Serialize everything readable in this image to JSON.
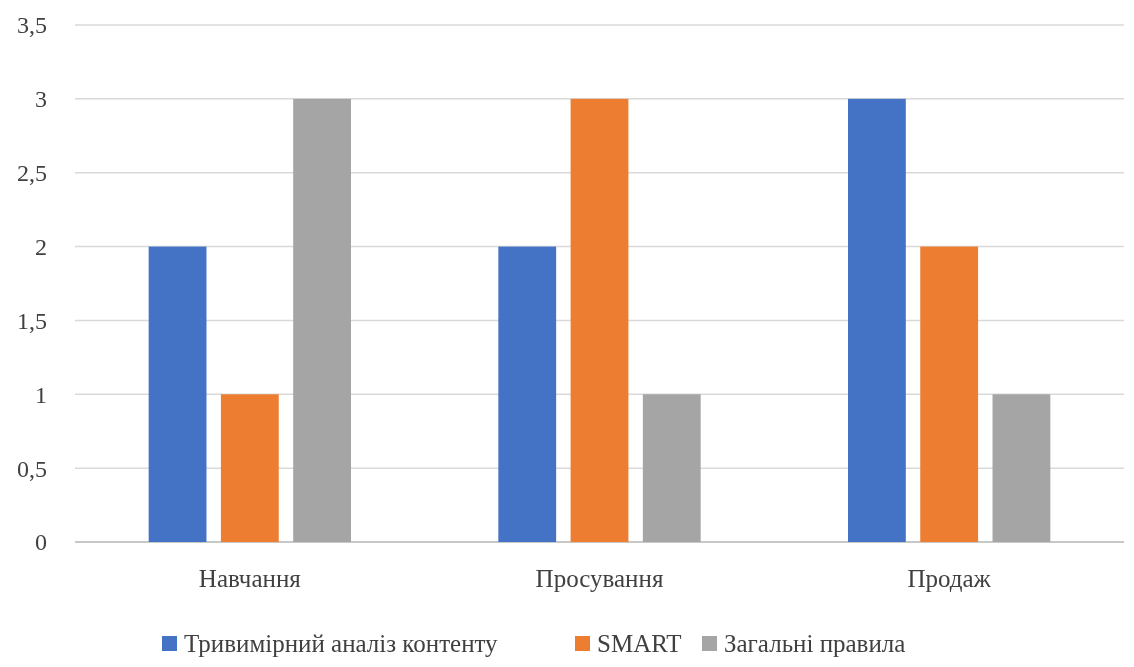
{
  "chart_data": {
    "type": "bar",
    "categories": [
      "Навчання",
      "Просування",
      "Продаж"
    ],
    "series": [
      {
        "name": "Тривимірний аналіз контенту",
        "color": "#4472c4",
        "values": [
          2,
          2,
          3
        ]
      },
      {
        "name": "SMART",
        "color": "#ed7d31",
        "values": [
          1,
          3,
          2
        ]
      },
      {
        "name": "Загальні правила",
        "color": "#a5a5a5",
        "values": [
          3,
          1,
          1
        ]
      }
    ],
    "ylim": [
      0,
      3.5
    ],
    "yticks": [
      0,
      {
        "value": 0.5,
        "label": "0,5"
      },
      1,
      {
        "value": 1.5,
        "label": "1,5"
      },
      2,
      {
        "value": 2.5,
        "label": "2,5"
      },
      3,
      {
        "value": 3.5,
        "label": "3,5"
      }
    ],
    "grid": "y",
    "legend": "bottom"
  }
}
